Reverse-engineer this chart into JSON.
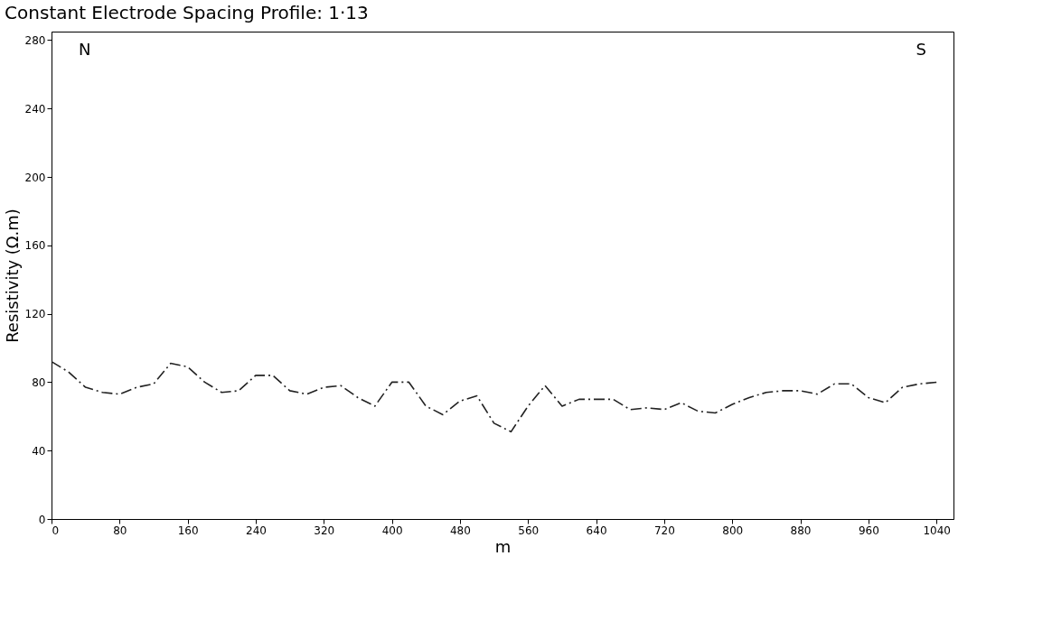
{
  "chart_data": {
    "type": "line",
    "title": "Constant Electrode Spacing Profile: 1·13",
    "xlabel": "m",
    "ylabel": "Resistivity (Ω.m)",
    "x": [
      0,
      20,
      40,
      60,
      80,
      100,
      120,
      140,
      160,
      180,
      200,
      220,
      240,
      260,
      280,
      300,
      320,
      340,
      360,
      380,
      400,
      420,
      440,
      460,
      480,
      500,
      520,
      540,
      560,
      580,
      600,
      620,
      640,
      660,
      680,
      700,
      720,
      740,
      760,
      780,
      800,
      820,
      840,
      860,
      880,
      900,
      920,
      940,
      960,
      980,
      1000,
      1020,
      1040
    ],
    "series": [
      {
        "color": "#222222",
        "values": [
          92,
          86,
          77,
          74,
          73,
          77,
          79,
          91,
          89,
          80,
          74,
          75,
          84,
          84,
          75,
          73,
          77,
          78,
          71,
          66,
          80,
          80,
          66,
          61,
          69,
          72,
          56,
          51,
          66,
          78,
          66,
          70,
          70,
          70,
          64,
          65,
          64,
          68,
          63,
          62,
          67,
          71,
          74,
          75,
          75,
          73,
          79,
          79,
          71,
          68,
          77,
          79,
          80
        ]
      }
    ],
    "xlim": [
      0,
      1060
    ],
    "ylim": [
      0,
      285
    ],
    "xticks": [
      0,
      80,
      160,
      240,
      320,
      400,
      480,
      560,
      640,
      720,
      800,
      880,
      960,
      1040
    ],
    "yticks": [
      0,
      40,
      80,
      120,
      160,
      200,
      240,
      280
    ],
    "annotations": [
      "N",
      "S"
    ],
    "grid": false,
    "legend": false,
    "marker": "none",
    "line_style": "dashed"
  }
}
